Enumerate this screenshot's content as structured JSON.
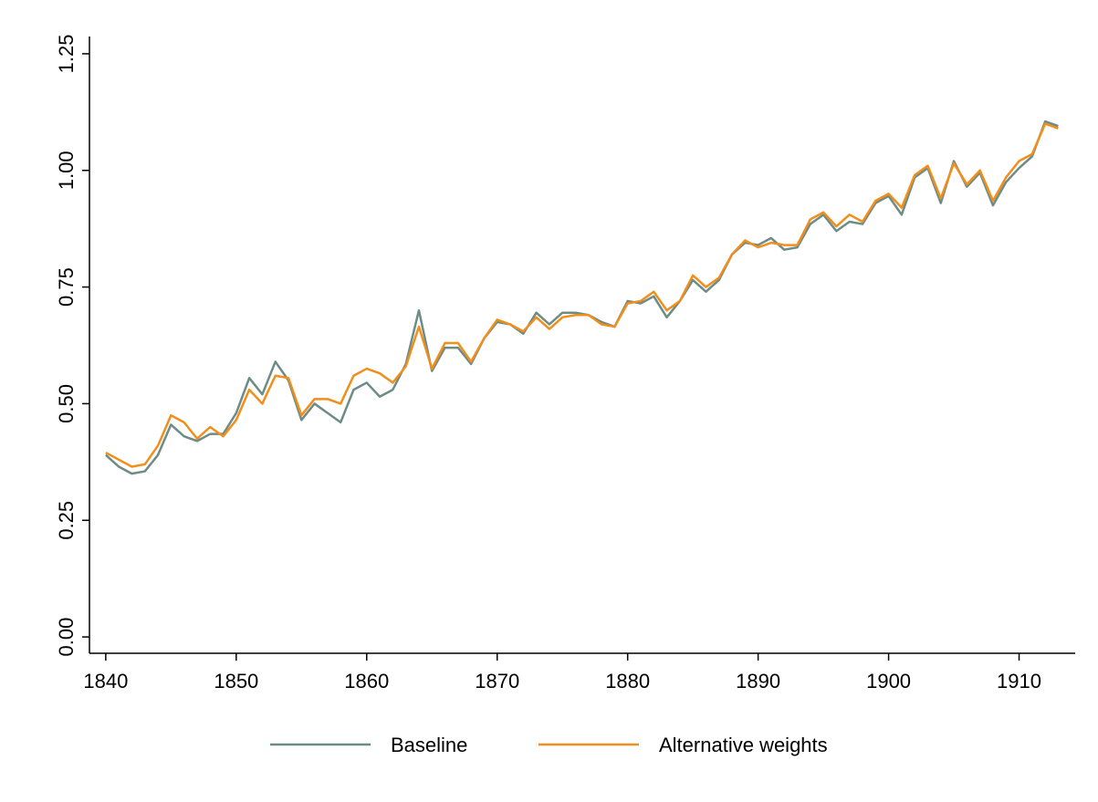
{
  "chart_data": {
    "type": "line",
    "x": [
      1840,
      1841,
      1842,
      1843,
      1844,
      1845,
      1846,
      1847,
      1848,
      1849,
      1850,
      1851,
      1852,
      1853,
      1854,
      1855,
      1856,
      1857,
      1858,
      1859,
      1860,
      1861,
      1862,
      1863,
      1864,
      1865,
      1866,
      1867,
      1868,
      1869,
      1870,
      1871,
      1872,
      1873,
      1874,
      1875,
      1876,
      1877,
      1878,
      1879,
      1880,
      1881,
      1882,
      1883,
      1884,
      1885,
      1886,
      1887,
      1888,
      1889,
      1890,
      1891,
      1892,
      1893,
      1894,
      1895,
      1896,
      1897,
      1898,
      1899,
      1900,
      1901,
      1902,
      1903,
      1904,
      1905,
      1906,
      1907,
      1908,
      1909,
      1910,
      1911,
      1912,
      1913
    ],
    "series": [
      {
        "name": "Baseline",
        "color": "#6e8c86",
        "values": [
          0.39,
          0.365,
          0.35,
          0.355,
          0.39,
          0.455,
          0.43,
          0.42,
          0.435,
          0.435,
          0.48,
          0.555,
          0.52,
          0.59,
          0.55,
          0.465,
          0.5,
          0.48,
          0.46,
          0.53,
          0.545,
          0.515,
          0.53,
          0.585,
          0.7,
          0.57,
          0.62,
          0.62,
          0.585,
          0.64,
          0.675,
          0.67,
          0.65,
          0.695,
          0.67,
          0.695,
          0.695,
          0.69,
          0.675,
          0.665,
          0.72,
          0.715,
          0.73,
          0.685,
          0.72,
          0.765,
          0.74,
          0.765,
          0.82,
          0.845,
          0.84,
          0.855,
          0.83,
          0.835,
          0.885,
          0.905,
          0.87,
          0.89,
          0.885,
          0.93,
          0.945,
          0.905,
          0.985,
          1.005,
          0.93,
          1.02,
          0.965,
          0.995,
          0.925,
          0.975,
          1.005,
          1.03,
          1.105,
          1.095
        ]
      },
      {
        "name": "Alternative weights",
        "color": "#f28e1c",
        "values": [
          0.395,
          0.38,
          0.365,
          0.37,
          0.41,
          0.475,
          0.46,
          0.425,
          0.45,
          0.43,
          0.465,
          0.53,
          0.5,
          0.56,
          0.555,
          0.475,
          0.51,
          0.51,
          0.5,
          0.56,
          0.575,
          0.565,
          0.545,
          0.58,
          0.665,
          0.575,
          0.63,
          0.63,
          0.59,
          0.64,
          0.68,
          0.67,
          0.655,
          0.685,
          0.66,
          0.685,
          0.69,
          0.69,
          0.67,
          0.665,
          0.715,
          0.72,
          0.74,
          0.7,
          0.72,
          0.775,
          0.75,
          0.77,
          0.82,
          0.85,
          0.835,
          0.845,
          0.84,
          0.84,
          0.895,
          0.91,
          0.88,
          0.905,
          0.89,
          0.935,
          0.95,
          0.92,
          0.99,
          1.01,
          0.94,
          1.015,
          0.97,
          1.0,
          0.935,
          0.985,
          1.02,
          1.035,
          1.1,
          1.09
        ]
      }
    ],
    "xlim": [
      1838.75,
      1914.3
    ],
    "xticks": [
      1840,
      1850,
      1860,
      1870,
      1880,
      1890,
      1900,
      1910
    ],
    "ylim": [
      -0.035,
      1.287
    ],
    "yticks": [
      {
        "value": 0,
        "label": "0.00"
      },
      {
        "value": 0.25,
        "label": "0.25"
      },
      {
        "value": 0.5,
        "label": "0.50"
      },
      {
        "value": 0.75,
        "label": "0.75"
      },
      {
        "value": 1,
        "label": "1.00"
      },
      {
        "value": 1.25,
        "label": "1.25"
      }
    ],
    "legend": "bottom"
  }
}
